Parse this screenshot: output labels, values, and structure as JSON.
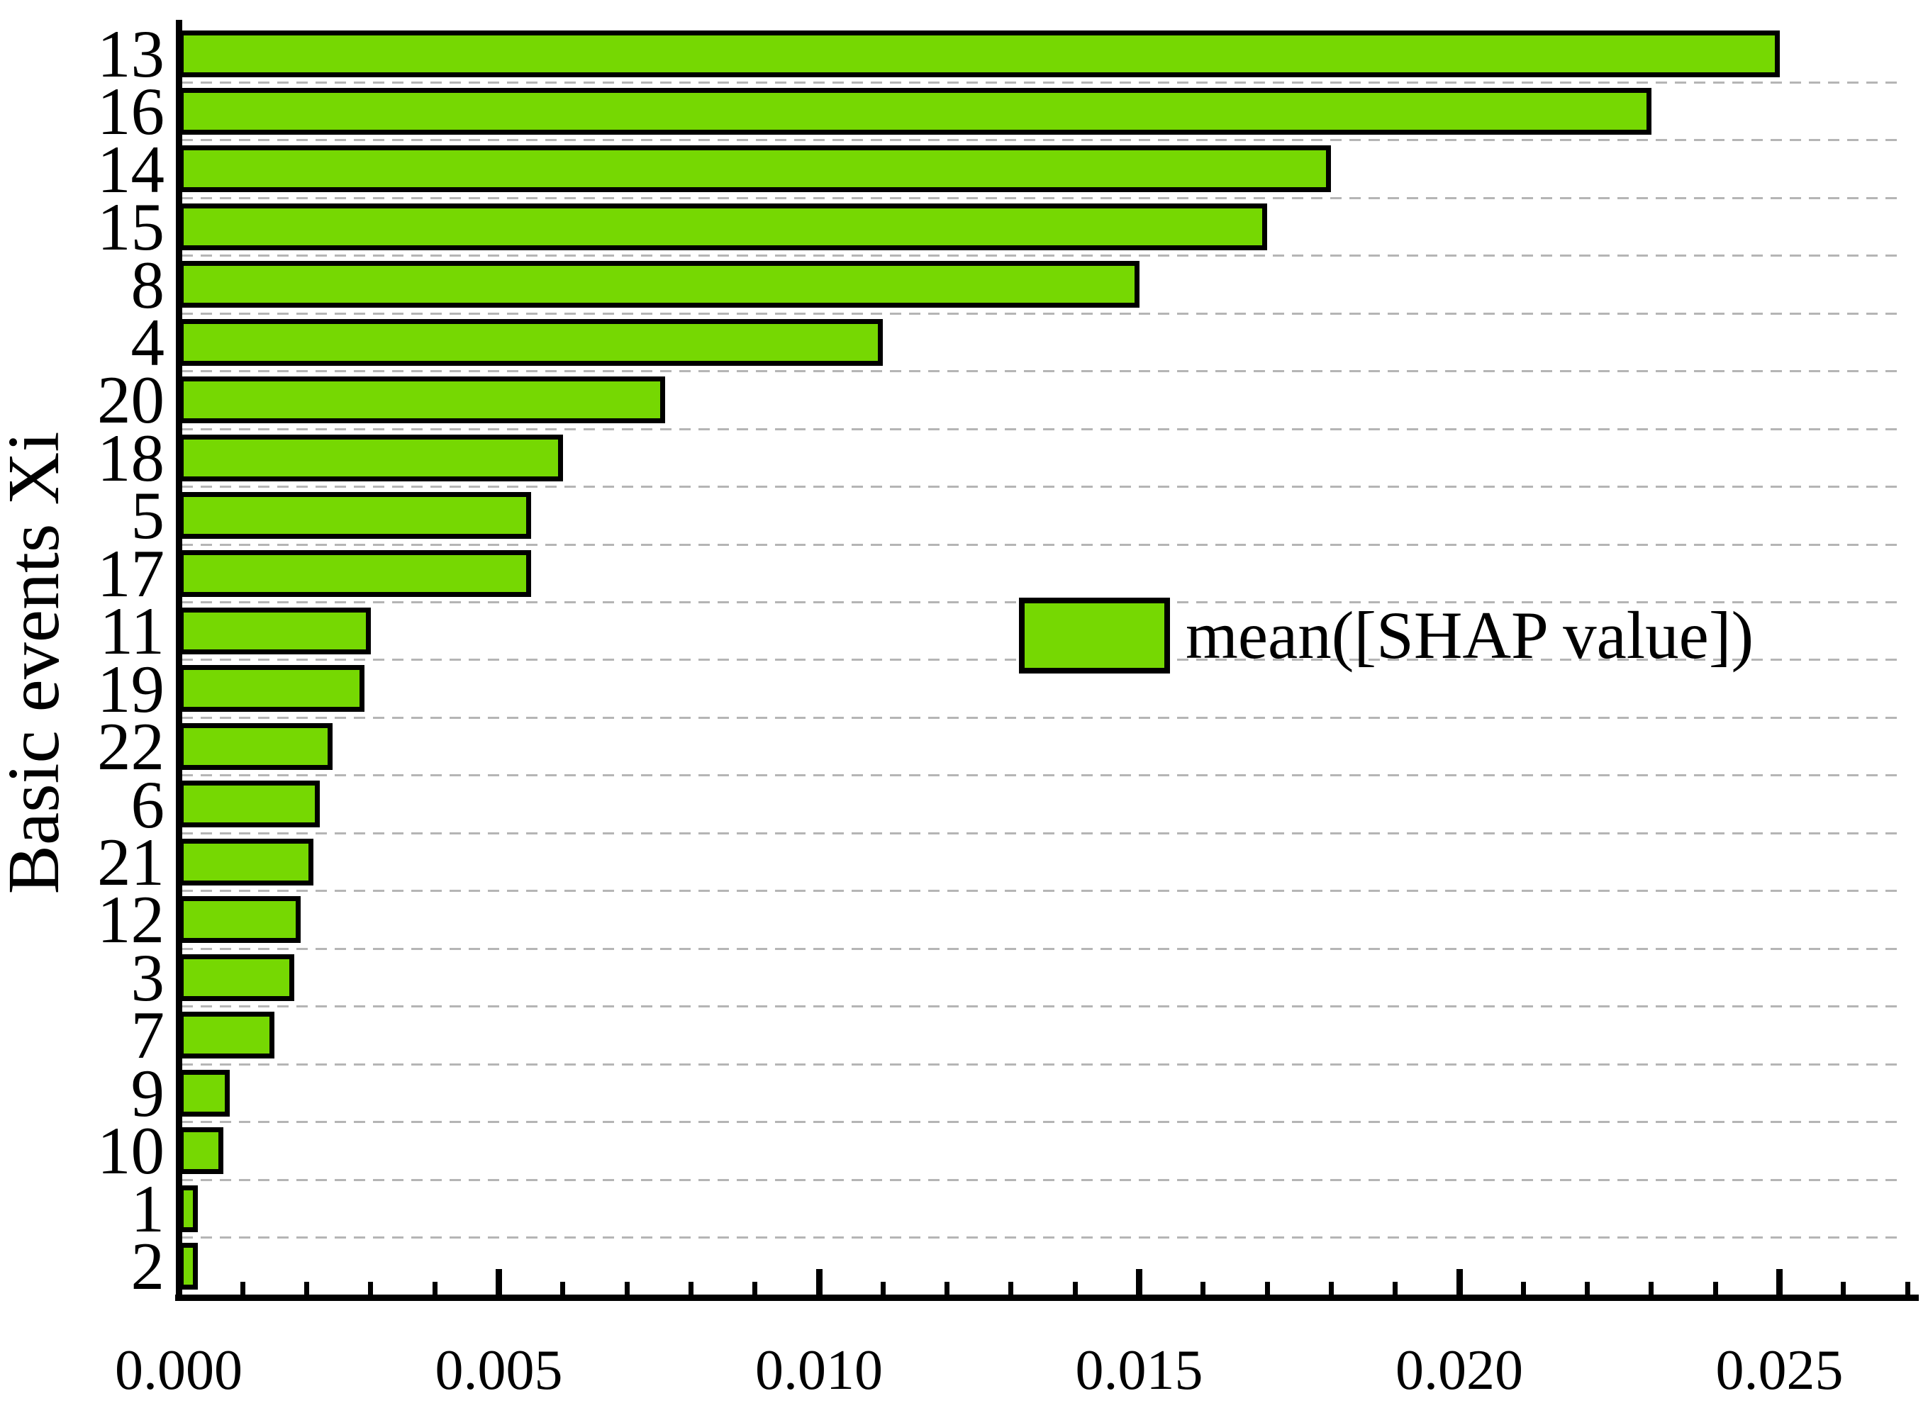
{
  "chart_data": {
    "type": "bar",
    "orientation": "horizontal",
    "title": "",
    "xlabel": "",
    "ylabel": "Basic events Xi",
    "categories": [
      "13",
      "16",
      "14",
      "15",
      "8",
      "4",
      "20",
      "18",
      "5",
      "17",
      "11",
      "19",
      "22",
      "6",
      "21",
      "12",
      "3",
      "7",
      "9",
      "10",
      "1",
      "2"
    ],
    "values": [
      0.025,
      0.023,
      0.018,
      0.017,
      0.015,
      0.011,
      0.0076,
      0.006,
      0.0055,
      0.0055,
      0.003,
      0.0029,
      0.0024,
      0.0022,
      0.0021,
      0.0019,
      0.0018,
      0.0015,
      0.0008,
      0.0007,
      0.0003,
      0.0003
    ],
    "x_tick_labels": [
      "0.000",
      "0.005",
      "0.010",
      "0.015",
      "0.020",
      "0.025"
    ],
    "x_minor_tick_step": 0.001,
    "xlim": [
      0,
      0.027
    ],
    "grid": "horizontal-dashed",
    "legend": {
      "label": "mean([SHAP value])",
      "position": "center-right"
    },
    "colors": {
      "bar_fill": "#76D802",
      "bar_border": "#000000",
      "grid": "#b5b5b5",
      "axis": "#000000",
      "text": "#000000",
      "background": "#ffffff"
    }
  }
}
